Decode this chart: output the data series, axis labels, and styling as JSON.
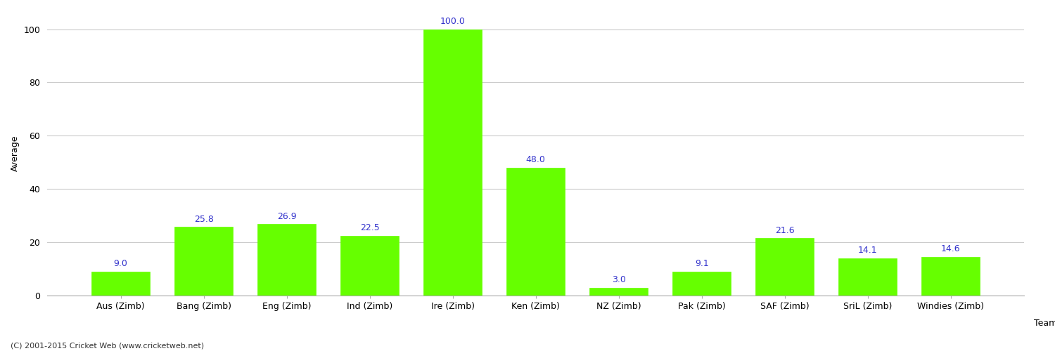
{
  "title": "",
  "categories": [
    "Aus (Zimb)",
    "Bang (Zimb)",
    "Eng (Zimb)",
    "Ind (Zimb)",
    "Ire (Zimb)",
    "Ken (Zimb)",
    "NZ (Zimb)",
    "Pak (Zimb)",
    "SAF (Zimb)",
    "SriL (Zimb)",
    "Windies (Zimb)"
  ],
  "values": [
    9.0,
    25.8,
    26.9,
    22.5,
    100.0,
    48.0,
    3.0,
    9.1,
    21.6,
    14.1,
    14.6
  ],
  "bar_color": "#66ff00",
  "bar_edge_color": "#66ff00",
  "label_color": "#3333cc",
  "xlabel": "Team",
  "ylabel": "Average",
  "ylim": [
    0,
    107
  ],
  "yticks": [
    0,
    20,
    40,
    60,
    80,
    100
  ],
  "grid_color": "#cccccc",
  "background_color": "#ffffff",
  "figure_background": "#ffffff",
  "footer": "(C) 2001-2015 Cricket Web (www.cricketweb.net)",
  "label_fontsize": 9,
  "tick_fontsize": 9,
  "footer_fontsize": 8,
  "bar_width": 0.7
}
